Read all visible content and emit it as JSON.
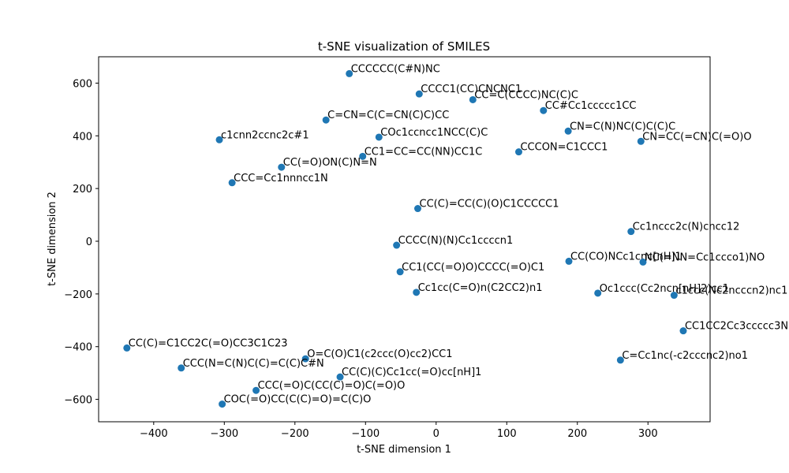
{
  "chart_data": {
    "type": "scatter",
    "title": "t-SNE visualization of SMILES",
    "xlabel": "t-SNE dimension 1",
    "ylabel": "t-SNE dimension 2",
    "xlim": [
      -478,
      388
    ],
    "ylim": [
      -685,
      700
    ],
    "xticks": [
      -400,
      -300,
      -200,
      -100,
      0,
      100,
      200,
      300
    ],
    "yticks": [
      -600,
      -400,
      -200,
      0,
      200,
      400,
      600
    ],
    "xtick_labels": [
      "−400",
      "−300",
      "−200",
      "−100",
      "0",
      "100",
      "200",
      "300"
    ],
    "ytick_labels": [
      "−600",
      "−400",
      "−200",
      "0",
      "200",
      "400",
      "600"
    ],
    "grid": false,
    "marker_color": "#1f77b4",
    "points": [
      {
        "x": -123,
        "y": 636,
        "label": "CCCCCC(C#N)NC"
      },
      {
        "x": -24,
        "y": 559,
        "label": "CCCC1(CC)CNCNC1"
      },
      {
        "x": 52,
        "y": 537,
        "label": "CC=C(CCCC)NC(C)C"
      },
      {
        "x": 152,
        "y": 496,
        "label": "CC#Cc1ccccc1CC"
      },
      {
        "x": -156,
        "y": 460,
        "label": "C=CN=C(C=CN(C)C)CC"
      },
      {
        "x": 187,
        "y": 418,
        "label": "CN=C(N)NC(C)C(C)C"
      },
      {
        "x": -81,
        "y": 395,
        "label": "COc1ccncc1NCC(C)C"
      },
      {
        "x": -307,
        "y": 385,
        "label": "c1cnn2ccnc2c#1"
      },
      {
        "x": 290,
        "y": 379,
        "label": "CN=CC(=CN)C(=O)O"
      },
      {
        "x": 117,
        "y": 339,
        "label": "CCCON=C1CCC1"
      },
      {
        "x": -104,
        "y": 322,
        "label": "CC1=CC=CC(NN)CC1C"
      },
      {
        "x": -219,
        "y": 281,
        "label": "CC(=O)ON(C)N=N"
      },
      {
        "x": -289,
        "y": 222,
        "label": "CCC=Cc1nnncc1N"
      },
      {
        "x": -26,
        "y": 124,
        "label": "CC(C)=CC(C)(O)C1CCCCC1"
      },
      {
        "x": 276,
        "y": 37,
        "label": "Cc1nccc2c(N)cncc12"
      },
      {
        "x": -56,
        "y": -15,
        "label": "CCCC(N)(N)Cc1ccccn1"
      },
      {
        "x": 188,
        "y": -76,
        "label": "CC(CO)NCc1cnc[nH]1"
      },
      {
        "x": 293,
        "y": -79,
        "label": "NC(=NN=Cc1ccco1)NO"
      },
      {
        "x": -51,
        "y": -116,
        "label": "CC1(CC(=O)O)CCCC(=O)C1"
      },
      {
        "x": -28,
        "y": -194,
        "label": "Cc1cc(C=O)n(C2CC2)n1"
      },
      {
        "x": 229,
        "y": -197,
        "label": "Oc1ccc(Cc2ncn[nH]2)cc1"
      },
      {
        "x": 337,
        "y": -205,
        "label": "c1ccc(Nc2ncccn2)nc1"
      },
      {
        "x": 350,
        "y": -340,
        "label": "CC1CC2Cc3ccccc3N"
      },
      {
        "x": -438,
        "y": -405,
        "label": "CC(C)=C1CC2C(=O)CC3C1C23"
      },
      {
        "x": -185,
        "y": -446,
        "label": "O=C(O)C1(c2ccc(O)cc2)CC1"
      },
      {
        "x": 261,
        "y": -451,
        "label": "C=Cc1nc(-c2cccnc2)no1"
      },
      {
        "x": -361,
        "y": -481,
        "label": "CCC(N=C(N)C(C)=C(C)C#N"
      },
      {
        "x": -136,
        "y": -515,
        "label": "CC(C)(C)Cc1cc(=O)cc[nH]1"
      },
      {
        "x": -255,
        "y": -566,
        "label": "CCC(=O)C(CC(C)=O)C(=O)O"
      },
      {
        "x": -303,
        "y": -618,
        "label": "COC(=O)CC(C(C)=O)=C(C)O"
      }
    ]
  }
}
